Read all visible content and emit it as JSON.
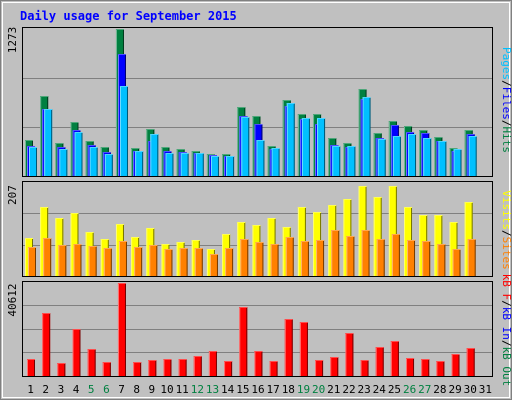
{
  "title": "Daily usage for September 2015",
  "colors": {
    "background": "#c0c0c0",
    "title": "#0000ff",
    "hits": "#008040",
    "files": "#0000ff",
    "pages": "#00c0ff",
    "visits": "#ffff00",
    "sites": "#ff8000",
    "kb_f": "#ff0000",
    "kb_in": "#0000ff",
    "kb_out": "#008040",
    "weekend": "#008040",
    "weekday": "#000000"
  },
  "chart_data": [
    {
      "type": "bar",
      "name": "hits-files-pages",
      "ymax_label": "1273",
      "ylim": [
        0,
        1273
      ],
      "legend": [
        "Pages",
        "/",
        "Files",
        "/",
        "Hits"
      ],
      "categories": [
        "1",
        "2",
        "3",
        "4",
        "5",
        "6",
        "7",
        "8",
        "9",
        "10",
        "11",
        "12",
        "13",
        "14",
        "15",
        "16",
        "17",
        "18",
        "19",
        "20",
        "21",
        "22",
        "23",
        "24",
        "25",
        "26",
        "27",
        "28",
        "29",
        "30",
        "31"
      ],
      "series": [
        {
          "name": "Hits",
          "values": [
            310,
            690,
            290,
            470,
            300,
            250,
            1270,
            240,
            410,
            250,
            230,
            220,
            190,
            190,
            600,
            520,
            260,
            660,
            540,
            540,
            330,
            290,
            750,
            370,
            480,
            430,
            400,
            340,
            240,
            400,
            null
          ]
        },
        {
          "name": "Files",
          "values": [
            260,
            580,
            250,
            400,
            270,
            210,
            1060,
            220,
            300,
            220,
            210,
            200,
            180,
            170,
            520,
            450,
            230,
            610,
            490,
            450,
            270,
            250,
            670,
            330,
            440,
            380,
            370,
            300,
            220,
            360,
            null
          ]
        },
        {
          "name": "Pages",
          "values": [
            250,
            580,
            230,
            380,
            250,
            190,
            780,
            220,
            360,
            200,
            200,
            200,
            170,
            170,
            510,
            310,
            240,
            630,
            500,
            500,
            260,
            260,
            680,
            320,
            350,
            360,
            330,
            300,
            230,
            350,
            null
          ]
        }
      ]
    },
    {
      "type": "bar",
      "name": "visits-sites",
      "ymax_label": "207",
      "ylim": [
        0,
        207
      ],
      "legend": [
        "Visits",
        "/",
        "Sites"
      ],
      "categories": [
        "1",
        "2",
        "3",
        "4",
        "5",
        "6",
        "7",
        "8",
        "9",
        "10",
        "11",
        "12",
        "13",
        "14",
        "15",
        "16",
        "17",
        "18",
        "19",
        "20",
        "21",
        "22",
        "23",
        "24",
        "25",
        "26",
        "27",
        "28",
        "29",
        "30",
        "31"
      ],
      "series": [
        {
          "name": "Visits",
          "values": [
            85,
            153,
            130,
            140,
            97,
            82,
            116,
            87,
            107,
            72,
            76,
            80,
            59,
            94,
            120,
            113,
            128,
            108,
            153,
            142,
            158,
            172,
            200,
            175,
            200,
            153,
            135,
            135,
            120,
            164,
            null
          ]
        },
        {
          "name": "Sites",
          "values": [
            64,
            85,
            68,
            71,
            67,
            63,
            77,
            64,
            70,
            59,
            63,
            62,
            48,
            62,
            83,
            76,
            72,
            86,
            78,
            80,
            102,
            90,
            103,
            82,
            94,
            80,
            77,
            72,
            60,
            82,
            null
          ]
        }
      ]
    },
    {
      "type": "bar",
      "name": "kbytes",
      "ymax_label": "40612",
      "ylim": [
        0,
        40612
      ],
      "legend": [
        "kB F",
        "/",
        "kB In",
        "/",
        "kB Out"
      ],
      "categories": [
        "1",
        "2",
        "3",
        "4",
        "5",
        "6",
        "7",
        "8",
        "9",
        "10",
        "11",
        "12",
        "13",
        "14",
        "15",
        "16",
        "17",
        "18",
        "19",
        "20",
        "21",
        "22",
        "23",
        "24",
        "25",
        "26",
        "27",
        "28",
        "29",
        "30",
        "31"
      ],
      "series": [
        {
          "name": "kB F",
          "values": [
            7600,
            27300,
            5700,
            20500,
            11900,
            6300,
            40612,
            6100,
            6800,
            7600,
            7600,
            8800,
            10900,
            6700,
            30000,
            11100,
            6500,
            24900,
            23500,
            7200,
            8300,
            18700,
            6800,
            12800,
            15500,
            8000,
            7500,
            6700,
            9700,
            12200,
            null
          ]
        }
      ]
    }
  ],
  "weekend_days": [
    "5",
    "6",
    "12",
    "13",
    "19",
    "20",
    "26",
    "27"
  ]
}
